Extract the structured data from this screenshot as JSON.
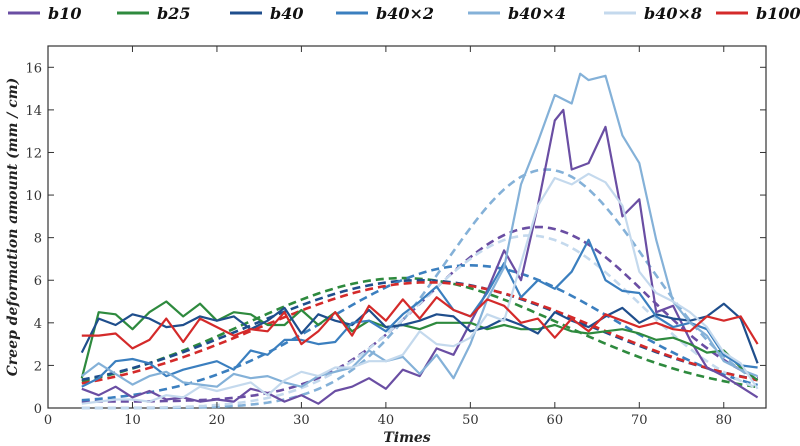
{
  "chart_data": {
    "type": "line",
    "xlabel": "Times",
    "ylabel": "Creep deformation amount (mm / cm)",
    "xlim": [
      0,
      85
    ],
    "ylim": [
      0,
      17
    ],
    "xticks": [
      0,
      10,
      20,
      30,
      40,
      50,
      60,
      70,
      80
    ],
    "yticks": [
      0,
      2,
      4,
      6,
      8,
      10,
      12,
      14,
      16
    ],
    "grid": false,
    "legend_position": "top",
    "series": [
      {
        "name": "b10",
        "color": "#6a4ea3",
        "x": [
          4,
          6,
          8,
          10,
          12,
          14,
          16,
          18,
          20,
          22,
          24,
          26,
          28,
          30,
          32,
          34,
          36,
          38,
          40,
          42,
          44,
          46,
          48,
          50,
          52,
          54,
          56,
          58,
          60,
          61,
          62,
          64,
          66,
          68,
          70,
          72,
          74,
          76,
          78,
          80,
          82,
          84
        ],
        "values": [
          0.9,
          0.6,
          1.0,
          0.5,
          0.8,
          0.4,
          0.5,
          0.3,
          0.4,
          0.3,
          0.9,
          0.7,
          0.3,
          0.6,
          0.2,
          0.8,
          1.0,
          1.4,
          0.9,
          1.8,
          1.5,
          2.8,
          2.5,
          4.0,
          5.5,
          7.4,
          6.0,
          9.5,
          13.5,
          14.0,
          11.2,
          11.5,
          13.2,
          9.0,
          9.8,
          4.5,
          4.8,
          3.2,
          1.9,
          1.5,
          1.0,
          0.5
        ]
      },
      {
        "name": "b25",
        "color": "#2e8a3e",
        "x": [
          4,
          6,
          8,
          10,
          12,
          14,
          16,
          18,
          20,
          22,
          24,
          26,
          28,
          30,
          32,
          34,
          36,
          38,
          40,
          42,
          44,
          46,
          48,
          50,
          52,
          54,
          56,
          58,
          60,
          62,
          64,
          66,
          68,
          70,
          72,
          74,
          76,
          78,
          80,
          82,
          84
        ],
        "values": [
          1.4,
          4.5,
          4.4,
          3.7,
          4.5,
          5.0,
          4.3,
          4.9,
          4.1,
          4.5,
          4.4,
          3.9,
          3.9,
          4.6,
          3.9,
          4.5,
          3.6,
          4.1,
          3.8,
          3.9,
          3.7,
          4.0,
          4.0,
          4.0,
          3.7,
          3.9,
          3.7,
          3.7,
          3.9,
          3.6,
          3.5,
          3.6,
          3.7,
          3.5,
          3.2,
          3.3,
          3.0,
          2.6,
          2.7,
          1.9,
          1.3
        ]
      },
      {
        "name": "b40",
        "color": "#1f4e8c",
        "x": [
          4,
          6,
          8,
          10,
          12,
          14,
          16,
          18,
          20,
          22,
          24,
          26,
          28,
          30,
          32,
          34,
          36,
          38,
          40,
          42,
          44,
          46,
          48,
          50,
          52,
          54,
          56,
          58,
          60,
          62,
          64,
          66,
          68,
          70,
          72,
          74,
          76,
          78,
          80,
          82,
          84
        ],
        "values": [
          2.6,
          4.2,
          3.9,
          4.4,
          4.2,
          3.8,
          3.9,
          4.3,
          4.1,
          4.3,
          3.7,
          4.1,
          4.7,
          3.5,
          4.4,
          4.1,
          3.9,
          4.6,
          3.8,
          3.9,
          4.1,
          4.4,
          4.3,
          3.6,
          3.8,
          4.2,
          3.9,
          3.5,
          4.5,
          4.1,
          3.8,
          4.3,
          4.7,
          4.0,
          4.4,
          4.2,
          4.1,
          4.3,
          4.9,
          4.2,
          2.1
        ]
      },
      {
        "name": "b40×2",
        "color": "#3b7fbf",
        "x": [
          4,
          6,
          8,
          10,
          12,
          14,
          16,
          18,
          20,
          22,
          24,
          26,
          28,
          30,
          32,
          34,
          36,
          38,
          40,
          42,
          44,
          46,
          48,
          50,
          52,
          54,
          56,
          58,
          60,
          62,
          64,
          66,
          68,
          70,
          72,
          74,
          76,
          78,
          80,
          82,
          84
        ],
        "values": [
          1.0,
          1.4,
          2.2,
          2.3,
          2.1,
          1.5,
          1.8,
          2.0,
          2.2,
          1.8,
          2.7,
          2.5,
          3.2,
          3.2,
          3.0,
          3.1,
          4.0,
          4.1,
          3.6,
          4.4,
          5.0,
          5.7,
          4.6,
          4.3,
          5.4,
          6.8,
          5.2,
          6.0,
          5.6,
          6.4,
          7.9,
          6.0,
          5.5,
          5.4,
          4.3,
          3.8,
          4.0,
          3.7,
          2.5,
          2.0,
          1.9
        ]
      },
      {
        "name": "b40×4",
        "color": "#84b1d8",
        "x": [
          4,
          6,
          8,
          10,
          12,
          14,
          16,
          18,
          20,
          22,
          24,
          26,
          28,
          30,
          32,
          34,
          36,
          38,
          40,
          42,
          44,
          46,
          48,
          50,
          52,
          54,
          56,
          58,
          60,
          62,
          63,
          64,
          66,
          68,
          70,
          72,
          74,
          76,
          78,
          80,
          82,
          84
        ],
        "values": [
          1.5,
          2.1,
          1.6,
          1.1,
          1.5,
          1.7,
          1.2,
          1.1,
          1.0,
          1.6,
          1.4,
          1.5,
          1.2,
          1.0,
          1.5,
          1.7,
          1.9,
          2.7,
          2.2,
          2.4,
          1.6,
          2.5,
          1.4,
          3.0,
          5.1,
          6.6,
          10.5,
          12.5,
          14.7,
          14.3,
          15.7,
          15.4,
          15.6,
          12.8,
          11.5,
          7.9,
          5.0,
          4.0,
          3.4,
          2.2,
          1.8,
          1.5
        ]
      },
      {
        "name": "b40×8",
        "color": "#c4d9ed",
        "x": [
          4,
          6,
          8,
          10,
          12,
          14,
          16,
          18,
          20,
          22,
          24,
          26,
          28,
          30,
          32,
          34,
          36,
          38,
          40,
          42,
          44,
          46,
          48,
          50,
          52,
          54,
          56,
          58,
          60,
          62,
          64,
          66,
          68,
          70,
          72,
          74,
          76,
          78,
          80,
          82,
          84
        ],
        "values": [
          0.2,
          0.3,
          0.4,
          0.4,
          0.3,
          0.6,
          0.5,
          1.0,
          0.8,
          1.0,
          1.2,
          0.6,
          1.3,
          1.7,
          1.5,
          1.9,
          1.9,
          2.2,
          2.2,
          2.5,
          3.6,
          3.0,
          2.9,
          3.3,
          4.4,
          4.1,
          6.8,
          9.5,
          10.8,
          10.5,
          11.0,
          10.6,
          9.5,
          6.4,
          5.4,
          5.0,
          4.5,
          3.8,
          2.6,
          2.1,
          0.9
        ]
      },
      {
        "name": "b100",
        "color": "#d42a2a",
        "x": [
          4,
          6,
          8,
          10,
          12,
          14,
          16,
          18,
          20,
          22,
          24,
          26,
          28,
          30,
          32,
          34,
          36,
          38,
          40,
          42,
          44,
          46,
          48,
          50,
          52,
          54,
          56,
          58,
          60,
          62,
          64,
          66,
          68,
          70,
          72,
          74,
          76,
          78,
          80,
          82,
          84
        ],
        "values": [
          3.4,
          3.4,
          3.5,
          2.8,
          3.2,
          4.2,
          3.1,
          4.2,
          3.8,
          3.4,
          3.7,
          3.6,
          4.5,
          3.0,
          3.6,
          4.5,
          3.4,
          4.8,
          4.1,
          5.1,
          4.2,
          5.2,
          4.6,
          4.3,
          5.1,
          4.8,
          4.0,
          4.2,
          3.3,
          4.2,
          3.6,
          4.4,
          4.1,
          3.8,
          4.0,
          3.7,
          3.6,
          4.3,
          4.1,
          4.3,
          3.0
        ]
      }
    ],
    "trend_curves": [
      {
        "series": "b10",
        "color": "#6a4ea3",
        "peak_x": 58,
        "peak_y": 8.5,
        "base_y": 0.3,
        "width": 13
      },
      {
        "series": "b25",
        "color": "#2e8a3e",
        "peak_x": 42,
        "peak_y": 6.1,
        "base_y": 0.5,
        "width": 19
      },
      {
        "series": "b40",
        "color": "#1f4e8c",
        "peak_x": 44,
        "peak_y": 6.0,
        "base_y": 0.6,
        "width": 20
      },
      {
        "series": "b40×2",
        "color": "#3b7fbf",
        "peak_x": 50,
        "peak_y": 6.7,
        "base_y": 0.2,
        "width": 17
      },
      {
        "series": "b40×4",
        "color": "#84b1d8",
        "peak_x": 59,
        "peak_y": 11.2,
        "base_y": 0.0,
        "width": 12
      },
      {
        "series": "b40×8",
        "color": "#c4d9ed",
        "peak_x": 57,
        "peak_y": 8.1,
        "base_y": 0.0,
        "width": 13
      },
      {
        "series": "b100",
        "color": "#d42a2a",
        "peak_x": 45,
        "peak_y": 5.9,
        "base_y": 0.5,
        "width": 20
      }
    ]
  }
}
